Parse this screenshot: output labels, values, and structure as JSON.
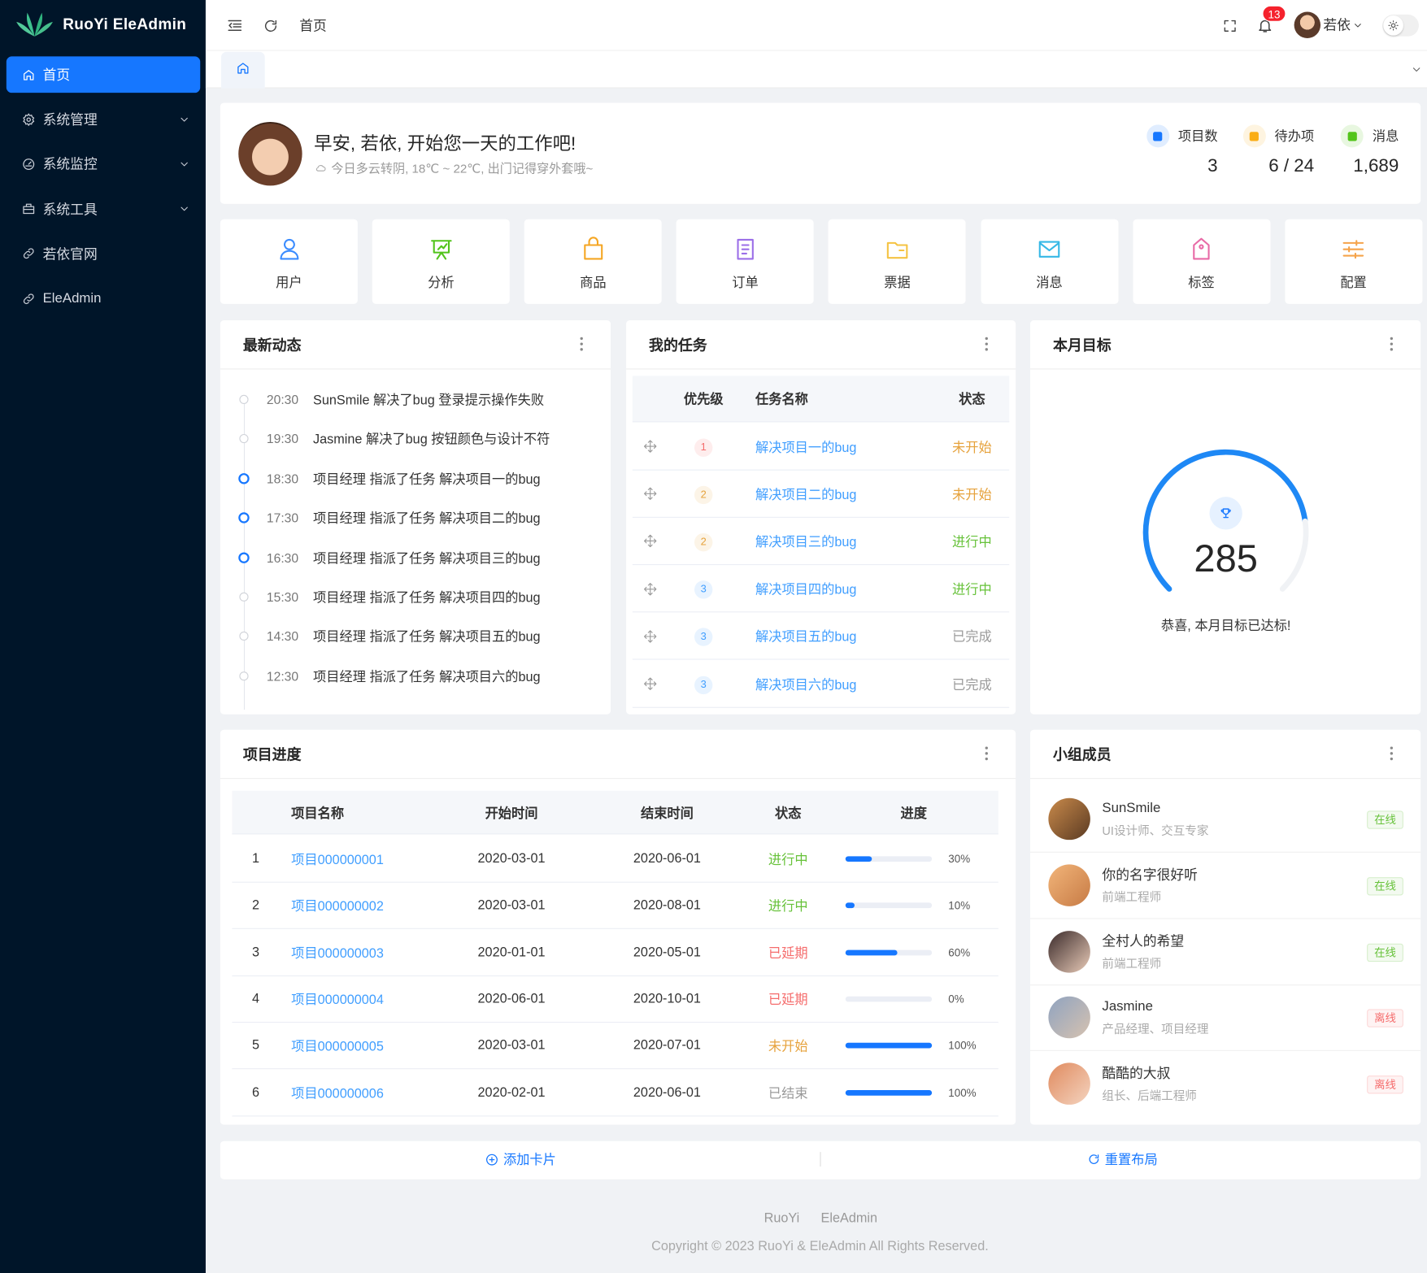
{
  "brand": "RuoYi EleAdmin",
  "menu": [
    "首页",
    "系统管理",
    "系统监控",
    "系统工具",
    "若依官网",
    "EleAdmin"
  ],
  "header": {
    "breadcrumb": "首页",
    "notice_count": 13,
    "user": "若依"
  },
  "welcome": {
    "greeting": "早安, 若依, 开始您一天的工作吧!",
    "weather": "今日多云转阴, 18℃ ~ 22℃, 出门记得穿外套哦~",
    "stats": [
      {
        "label": "项目数",
        "value": 3,
        "color": "#1677ff"
      },
      {
        "label": "待办项",
        "value": "6 / 24",
        "color": "#faad14"
      },
      {
        "label": "消息",
        "value": "1,689",
        "color": "#52c41a"
      }
    ]
  },
  "shortcuts": [
    {
      "label": "用户",
      "color": "#3b8cff"
    },
    {
      "label": "分析",
      "color": "#52c41a"
    },
    {
      "label": "商品",
      "color": "#f5a623"
    },
    {
      "label": "订单",
      "color": "#9b6ee8"
    },
    {
      "label": "票据",
      "color": "#f5c342"
    },
    {
      "label": "消息",
      "color": "#36b8e6"
    },
    {
      "label": "标签",
      "color": "#e86aa6"
    },
    {
      "label": "配置",
      "color": "#f5a34a"
    }
  ],
  "activity": {
    "title": "最新动态",
    "items": [
      {
        "time": "20:30",
        "text": "SunSmile 解决了bug 登录提示操作失败",
        "color": "#d0d3d9"
      },
      {
        "time": "19:30",
        "text": "Jasmine 解决了bug 按钮颜色与设计不符",
        "color": "#d0d3d9"
      },
      {
        "time": "18:30",
        "text": "项目经理 指派了任务 解决项目一的bug",
        "color": "#1677ff"
      },
      {
        "time": "17:30",
        "text": "项目经理 指派了任务 解决项目二的bug",
        "color": "#1677ff"
      },
      {
        "time": "16:30",
        "text": "项目经理 指派了任务 解决项目三的bug",
        "color": "#1677ff"
      },
      {
        "time": "15:30",
        "text": "项目经理 指派了任务 解决项目四的bug",
        "color": "#d0d3d9"
      },
      {
        "time": "14:30",
        "text": "项目经理 指派了任务 解决项目五的bug",
        "color": "#d0d3d9"
      },
      {
        "time": "12:30",
        "text": "项目经理 指派了任务 解决项目六的bug",
        "color": "#d0d3d9"
      }
    ]
  },
  "tasks": {
    "title": "我的任务",
    "columns": [
      "优先级",
      "任务名称",
      "状态"
    ],
    "rows": [
      {
        "priority": 1,
        "priority_color": "#f56c6c",
        "name": "解决项目一的bug",
        "status": "未开始",
        "status_color": "#e6a23c"
      },
      {
        "priority": 2,
        "priority_color": "#e6a23c",
        "name": "解决项目二的bug",
        "status": "未开始",
        "status_color": "#e6a23c"
      },
      {
        "priority": 2,
        "priority_color": "#e6a23c",
        "name": "解决项目三的bug",
        "status": "进行中",
        "status_color": "#67c23a"
      },
      {
        "priority": 3,
        "priority_color": "#409eff",
        "name": "解决项目四的bug",
        "status": "进行中",
        "status_color": "#67c23a"
      },
      {
        "priority": 3,
        "priority_color": "#409eff",
        "name": "解决项目五的bug",
        "status": "已完成",
        "status_color": "#9a9a9a"
      },
      {
        "priority": 3,
        "priority_color": "#409eff",
        "name": "解决项目六的bug",
        "status": "已完成",
        "status_color": "#9a9a9a"
      }
    ]
  },
  "goal": {
    "title": "本月目标",
    "value": 285,
    "text": "恭喜, 本月目标已达标!"
  },
  "projects": {
    "title": "项目进度",
    "columns": [
      "项目名称",
      "开始时间",
      "结束时间",
      "状态",
      "进度"
    ],
    "rows": [
      {
        "no": 1,
        "name": "项目000000001",
        "start": "2020-03-01",
        "end": "2020-06-01",
        "status": "进行中",
        "status_color": "#67c23a",
        "progress": {
          "value": 30,
          "label": "30%"
        }
      },
      {
        "no": 2,
        "name": "项目000000002",
        "start": "2020-03-01",
        "end": "2020-08-01",
        "status": "进行中",
        "status_color": "#67c23a",
        "progress": {
          "value": 10,
          "label": "10%"
        }
      },
      {
        "no": 3,
        "name": "项目000000003",
        "start": "2020-01-01",
        "end": "2020-05-01",
        "status": "已延期",
        "status_color": "#f56c6c",
        "progress": {
          "value": 60,
          "label": "60%"
        }
      },
      {
        "no": 4,
        "name": "项目000000004",
        "start": "2020-06-01",
        "end": "2020-10-01",
        "status": "已延期",
        "status_color": "#f56c6c",
        "progress": {
          "value": 0,
          "label": "0%"
        }
      },
      {
        "no": 5,
        "name": "项目000000005",
        "start": "2020-03-01",
        "end": "2020-07-01",
        "status": "未开始",
        "status_color": "#e6a23c",
        "progress": {
          "value": 100,
          "label": "100%"
        }
      },
      {
        "no": 6,
        "name": "项目000000006",
        "start": "2020-02-01",
        "end": "2020-06-01",
        "status": "已结束",
        "status_color": "#9a9a9a",
        "progress": {
          "value": 100,
          "label": "100%"
        }
      }
    ]
  },
  "members": {
    "title": "小组成员",
    "items": [
      {
        "name": "SunSmile",
        "role": "UI设计师、交互专家",
        "status": "在线",
        "status_color": "#67c23a"
      },
      {
        "name": "你的名字很好听",
        "role": "前端工程师",
        "status": "在线",
        "status_color": "#67c23a"
      },
      {
        "name": "全村人的希望",
        "role": "前端工程师",
        "status": "在线",
        "status_color": "#67c23a"
      },
      {
        "name": "Jasmine",
        "role": "产品经理、项目经理",
        "status": "离线",
        "status_color": "#f56c6c"
      },
      {
        "name": "酷酷的大叔",
        "role": "组长、后端工程师",
        "status": "离线",
        "status_color": "#f56c6c"
      }
    ]
  },
  "actions": {
    "add": "添加卡片",
    "reset": "重置布局"
  },
  "footer": {
    "links": [
      "RuoYi",
      "EleAdmin"
    ],
    "copyright": "Copyright © 2023 RuoYi & EleAdmin All Rights Reserved."
  }
}
